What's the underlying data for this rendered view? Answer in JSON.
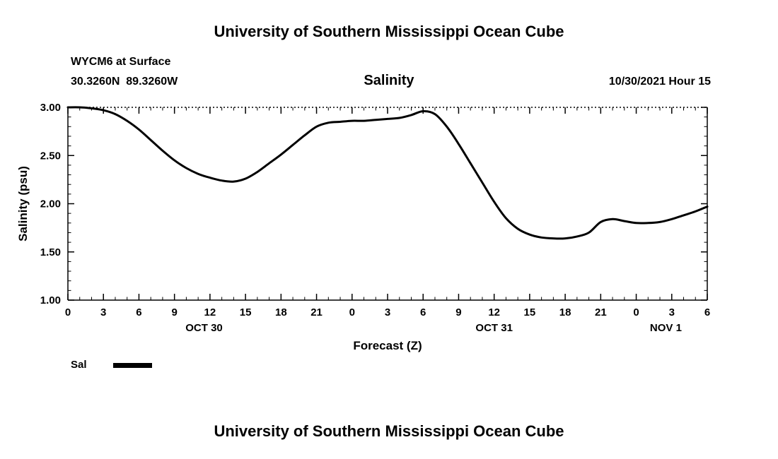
{
  "page": {
    "title_top": "University of Southern Mississippi Ocean Cube",
    "title_bottom": "University of Southern Mississippi Ocean Cube"
  },
  "header": {
    "station": "WYCM6 at Surface",
    "coordinates": "30.3260N  89.3260W",
    "plot_title": "Salinity",
    "run_label": "10/30/2021 Hour 15"
  },
  "legend": {
    "label": "Sal"
  },
  "chart_data": {
    "type": "line",
    "title": "Salinity",
    "xlabel": "Forecast (Z)",
    "ylabel": "Salinity (psu)",
    "xlim": [
      0,
      54
    ],
    "ylim": [
      1.0,
      3.0
    ],
    "grid": "dotted line at top frame, tick marks hourly top and bottom",
    "legend_position": "below-left",
    "line_color": "#000000",
    "y_ticks": [
      {
        "value": 1.0,
        "label": "1.00"
      },
      {
        "value": 1.5,
        "label": "1.50"
      },
      {
        "value": 2.0,
        "label": "2.00"
      },
      {
        "value": 2.5,
        "label": "2.50"
      },
      {
        "value": 3.0,
        "label": "3.00"
      }
    ],
    "x_ticks": [
      {
        "hour": 0,
        "label": "0"
      },
      {
        "hour": 3,
        "label": "3"
      },
      {
        "hour": 6,
        "label": "6"
      },
      {
        "hour": 9,
        "label": "9"
      },
      {
        "hour": 12,
        "label": "12"
      },
      {
        "hour": 15,
        "label": "15"
      },
      {
        "hour": 18,
        "label": "18"
      },
      {
        "hour": 21,
        "label": "21"
      },
      {
        "hour": 24,
        "label": "0"
      },
      {
        "hour": 27,
        "label": "3"
      },
      {
        "hour": 30,
        "label": "6"
      },
      {
        "hour": 33,
        "label": "9"
      },
      {
        "hour": 36,
        "label": "12"
      },
      {
        "hour": 39,
        "label": "15"
      },
      {
        "hour": 42,
        "label": "18"
      },
      {
        "hour": 45,
        "label": "21"
      },
      {
        "hour": 48,
        "label": "0"
      },
      {
        "hour": 51,
        "label": "3"
      },
      {
        "hour": 54,
        "label": "6"
      }
    ],
    "day_labels": [
      {
        "hour": 11.5,
        "label": "OCT 30"
      },
      {
        "hour": 36.0,
        "label": "OCT 31"
      },
      {
        "hour": 50.5,
        "label": "NOV 1"
      }
    ],
    "series": [
      {
        "name": "Sal",
        "x": [
          0,
          1,
          2,
          3,
          4,
          5,
          6,
          7,
          8,
          9,
          10,
          11,
          12,
          13,
          14,
          15,
          16,
          17,
          18,
          19,
          20,
          21,
          22,
          23,
          24,
          25,
          26,
          27,
          28,
          29,
          30,
          31,
          32,
          33,
          34,
          35,
          36,
          37,
          38,
          39,
          40,
          41,
          42,
          43,
          44,
          45,
          46,
          47,
          48,
          49,
          50,
          51,
          52,
          53,
          54
        ],
        "values": [
          3.0,
          3.0,
          2.99,
          2.97,
          2.93,
          2.86,
          2.77,
          2.66,
          2.55,
          2.45,
          2.37,
          2.31,
          2.27,
          2.24,
          2.23,
          2.26,
          2.33,
          2.42,
          2.51,
          2.61,
          2.71,
          2.8,
          2.84,
          2.85,
          2.86,
          2.86,
          2.87,
          2.88,
          2.89,
          2.92,
          2.96,
          2.93,
          2.8,
          2.62,
          2.42,
          2.22,
          2.02,
          1.85,
          1.74,
          1.68,
          1.65,
          1.64,
          1.64,
          1.66,
          1.7,
          1.81,
          1.84,
          1.82,
          1.8,
          1.8,
          1.81,
          1.84,
          1.88,
          1.92,
          1.97
        ]
      }
    ]
  }
}
